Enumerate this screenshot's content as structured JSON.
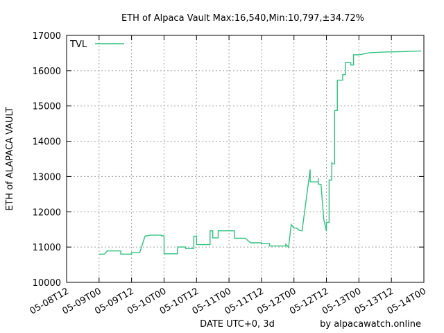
{
  "chart_data": {
    "type": "line",
    "title": "ETH of Alpaca Vault Max:16,540,Min:10,797,±34.72%",
    "xlabel": "DATE UTC+0, 3d",
    "ylabel": "ETH of ALAPACA VAULT",
    "credit": "by alpacawatch.online",
    "grid": true,
    "legend_placement": "top-left",
    "xlim": [
      "05-08T12",
      "05-14T00"
    ],
    "ylim": [
      10000,
      17000
    ],
    "x_tick_labels": [
      "05-08T12",
      "05-09T00",
      "05-09T12",
      "05-10T00",
      "05-10T12",
      "05-11T00",
      "05-11T12",
      "05-12T00",
      "05-12T12",
      "05-13T00",
      "05-13T12",
      "05-14T00"
    ],
    "y_ticks": [
      10000,
      11000,
      12000,
      13000,
      14000,
      15000,
      16000,
      17000
    ],
    "y_tick_labels": [
      "10000",
      "11000",
      "12000",
      "13000",
      "14000",
      "15000",
      "16000",
      "17000"
    ],
    "series": [
      {
        "name": "TVL",
        "color": "#2ec27e",
        "x": [
          "05-09T00",
          "05-09T02",
          "05-09T03",
          "05-09T08",
          "05-09T08",
          "05-09T12",
          "05-09T12",
          "05-09T15",
          "05-09T17",
          "05-09T19",
          "05-09T23",
          "05-09T23",
          "05-10T00",
          "05-10T00",
          "05-10T05",
          "05-10T05",
          "05-10T08",
          "05-10T08",
          "05-10T11",
          "05-10T11",
          "05-10T11",
          "05-10T12",
          "05-10T12",
          "05-10T17",
          "05-10T17",
          "05-10T18",
          "05-10T18",
          "05-10T20",
          "05-10T20",
          "05-10T21",
          "05-11T02",
          "05-11T02",
          "05-11T04",
          "05-11T06",
          "05-11T08",
          "05-11T08",
          "05-11T12",
          "05-11T12",
          "05-11T15",
          "05-11T15",
          "05-11T21",
          "05-11T21",
          "05-11T22",
          "05-11T23",
          "05-12T00",
          "05-12T01",
          "05-12T02",
          "05-12T02",
          "05-12T03",
          "05-12T03",
          "05-12T06",
          "05-12T06",
          "05-12T09",
          "05-12T09",
          "05-12T09",
          "05-12T09",
          "05-12T10",
          "05-12T11",
          "05-12T11",
          "05-12T12",
          "05-12T12",
          "05-12T13",
          "05-12T13",
          "05-12T14",
          "05-12T14",
          "05-12T14",
          "05-12T14",
          "05-12T15",
          "05-12T15",
          "05-12T15",
          "05-12T15",
          "05-12T16",
          "05-12T16",
          "05-12T18",
          "05-12T18",
          "05-12T19",
          "05-12T19",
          "05-12T21",
          "05-12T21",
          "05-12T22",
          "05-12T22",
          "05-13T00",
          "05-13T04",
          "05-13T04",
          "05-13T07",
          "05-13T07",
          "05-13T10",
          "05-13T10",
          "05-13T16",
          "05-13T16",
          "05-13T23"
        ],
        "values": [
          10800,
          10800,
          10890,
          10890,
          10800,
          10800,
          10840,
          10840,
          11310,
          11340,
          11340,
          11320,
          11320,
          10810,
          10810,
          11000,
          11000,
          10960,
          10960,
          11100,
          11310,
          11310,
          11070,
          11070,
          11460,
          11460,
          11260,
          11260,
          11460,
          11460,
          11460,
          11250,
          11250,
          11250,
          11120,
          11120,
          11120,
          11100,
          11100,
          11030,
          11030,
          11080,
          10990,
          11640,
          11540,
          11540,
          11470,
          11470,
          11460,
          11460,
          13200,
          12850,
          12850,
          12780,
          12960,
          12780,
          12780,
          11800,
          11800,
          11450,
          11700,
          11700,
          12900,
          12900,
          13420,
          13360,
          13360,
          13360,
          14000,
          14870,
          14870,
          14870,
          15730,
          15730,
          15890,
          15890,
          16230,
          16230,
          16160,
          16160,
          16450,
          16450,
          16510,
          16510,
          16520,
          16520,
          16530,
          16530,
          16540,
          16540,
          16560
        ]
      }
    ]
  }
}
